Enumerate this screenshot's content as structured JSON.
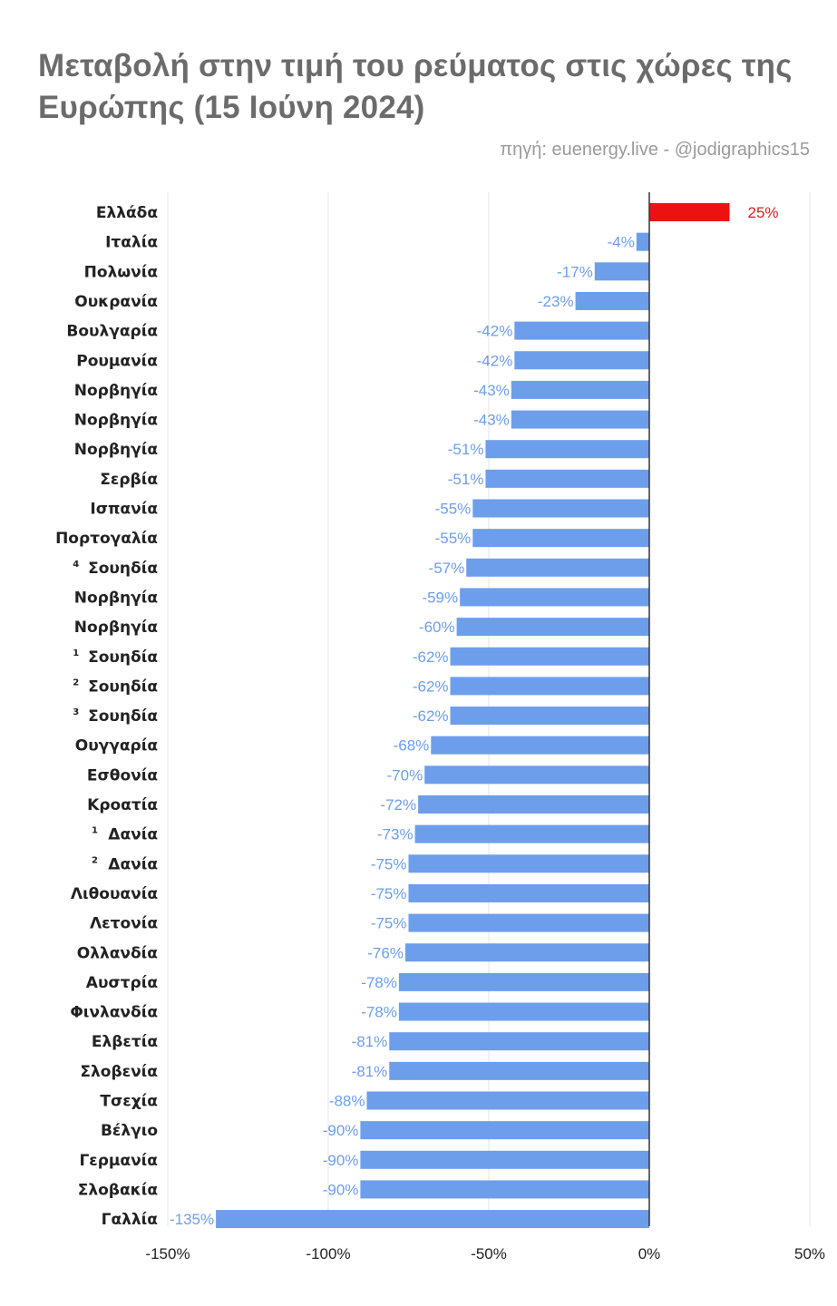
{
  "title": "Μεταβολή στην τιμή του ρεύματος στις χώρες της Ευρώπης (15 Ιούνη 2024)",
  "source": "πηγή: euenergy.live - @jodigraphics15",
  "colors": {
    "positive": "#ee1111",
    "negative": "#6d9eeb",
    "grid": "#e6e6e6",
    "zero_axis": "#333333"
  },
  "chart_data": {
    "type": "bar",
    "orientation": "horizontal",
    "title": "Μεταβολή στην τιμή του ρεύματος στις χώρες της Ευρώπης (15 Ιούνη 2024)",
    "categories": [
      "Ελλάδα",
      "Ιταλία",
      "Πολωνία",
      "Ουκρανία",
      "Βουλγαρία",
      "Ρουμανία",
      "Νορβηγία",
      "Νορβηγία",
      "Νορβηγία",
      "Σερβία",
      "Ισπανία",
      "Πορτογαλία",
      "Σουηδία",
      "Νορβηγία",
      "Νορβηγία",
      "Σουηδία",
      "Σουηδία",
      "Σουηδία",
      "Ουγγαρία",
      "Εσθονία",
      "Κροατία",
      "Δανία",
      "Δανία",
      "Λιθουανία",
      "Λετονία",
      "Ολλανδία",
      "Αυστρία",
      "Φινλανδία",
      "Ελβετία",
      "Σλοβενία",
      "Τσεχία",
      "Βέλγιο",
      "Γερμανία",
      "Σλοβακία",
      "Γαλλία"
    ],
    "category_notes": [
      "",
      "",
      "",
      "",
      "",
      "",
      "",
      "",
      "",
      "",
      "",
      "",
      "4",
      "",
      "",
      "1",
      "2",
      "3",
      "",
      "",
      "",
      "1",
      "2",
      "",
      "",
      "",
      "",
      "",
      "",
      "",
      "",
      "",
      "",
      "",
      ""
    ],
    "values": [
      25,
      -4,
      -17,
      -23,
      -42,
      -42,
      -43,
      -43,
      -51,
      -51,
      -55,
      -55,
      -57,
      -59,
      -60,
      -62,
      -62,
      -62,
      -68,
      -70,
      -72,
      -73,
      -75,
      -75,
      -75,
      -76,
      -78,
      -78,
      -81,
      -81,
      -88,
      -90,
      -90,
      -90,
      -135
    ],
    "labels": [
      "25%",
      "-4%",
      "-17%",
      "-23%",
      "-42%",
      "-42%",
      "-43%",
      "-43%",
      "-51%",
      "-51%",
      "-55%",
      "-55%",
      "-57%",
      "-59%",
      "-60%",
      "-62%",
      "-62%",
      "-62%",
      "-68%",
      "-70%",
      "-72%",
      "-73%",
      "-75%",
      "-75%",
      "-75%",
      "-76%",
      "-78%",
      "-78%",
      "-81%",
      "-81%",
      "-88%",
      "-90%",
      "-90%",
      "-90%",
      "-135%"
    ],
    "xlim": [
      -150,
      50
    ],
    "xticks": [
      -150,
      -100,
      -50,
      0,
      50
    ],
    "xtick_labels": [
      "-150%",
      "-100%",
      "-50%",
      "0%",
      "50%"
    ],
    "grid": true
  }
}
